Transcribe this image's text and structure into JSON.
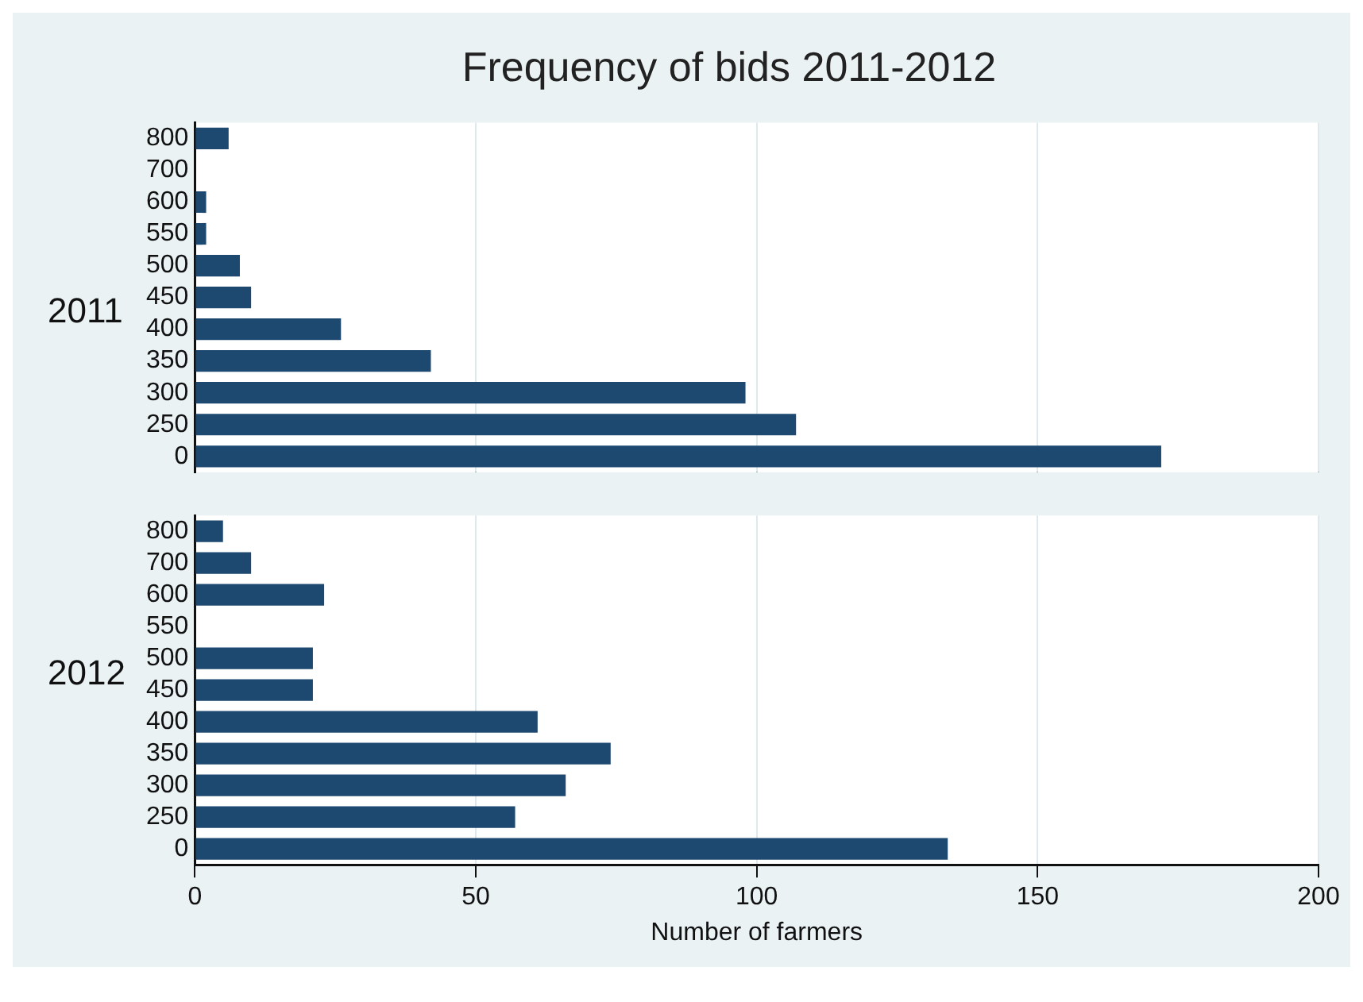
{
  "chart_data": [
    {
      "type": "bar",
      "orientation": "horizontal",
      "title": "Frequency of bids 2011-2012",
      "ylabel": "2011",
      "categories": [
        "800",
        "700",
        "600",
        "550",
        "500",
        "450",
        "400",
        "350",
        "300",
        "250",
        "0"
      ],
      "series": [
        {
          "color": "#1d4870",
          "values": [
            6,
            0,
            2,
            2,
            8,
            10,
            26,
            42,
            98,
            107,
            172
          ]
        }
      ],
      "xlim": [
        0,
        200
      ],
      "xticks": [
        0,
        50,
        100,
        150,
        200
      ],
      "grid": "x",
      "tick_labels": "y"
    },
    {
      "type": "bar",
      "orientation": "horizontal",
      "ylabel": "2012",
      "xlabel": "Number of farmers",
      "categories": [
        "800",
        "700",
        "600",
        "550",
        "500",
        "450",
        "400",
        "350",
        "300",
        "250",
        "0"
      ],
      "series": [
        {
          "color": "#1d4870",
          "values": [
            5,
            10,
            23,
            0,
            21,
            21,
            61,
            74,
            66,
            57,
            134
          ]
        }
      ],
      "xlim": [
        0,
        200
      ],
      "xticks": [
        0,
        50,
        100,
        150,
        200
      ],
      "grid": "x"
    }
  ]
}
